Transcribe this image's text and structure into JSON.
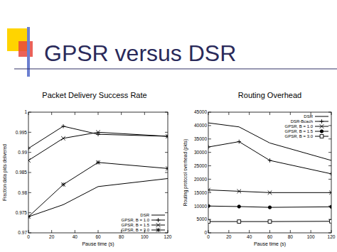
{
  "title": "GPSR versus DSR",
  "chart_data": [
    {
      "type": "line",
      "title": "Packet Delivery Success Rate",
      "x_label": "Pause time (s)",
      "y_label": "Fraction data pkts delivered",
      "x": [
        0,
        30,
        60,
        120
      ],
      "xlim": [
        0,
        120
      ],
      "xticks": [
        0,
        20,
        40,
        60,
        80,
        100,
        120
      ],
      "ylim": [
        0.97,
        1
      ],
      "yticks": [
        0.97,
        0.975,
        0.98,
        0.985,
        0.99,
        0.995,
        1
      ],
      "legend": "bottom-right",
      "series": [
        {
          "name": "DSR",
          "color": "#000000",
          "marker": "none",
          "line_style": "solid",
          "values": [
            0.974,
            0.977,
            0.9815,
            0.9835
          ]
        },
        {
          "name": "GPSR, B = 1.0",
          "color": "#000000",
          "marker": "plus",
          "line_style": "solid",
          "values": [
            0.991,
            0.9965,
            0.9945,
            0.994
          ]
        },
        {
          "name": "GPSR, B = 1.5",
          "color": "#000000",
          "marker": "cross",
          "line_style": "solid",
          "values": [
            0.988,
            0.9935,
            0.995,
            0.994
          ]
        },
        {
          "name": "GPSR, B = 3.0",
          "color": "#000000",
          "marker": "star",
          "line_style": "solid",
          "values": [
            0.974,
            0.982,
            0.9875,
            0.986
          ]
        }
      ]
    },
    {
      "type": "line",
      "title": "Routing Overhead",
      "x_label": "Pause time (s)",
      "y_label": "Routing protocol overhead (pkts)",
      "x": [
        0,
        30,
        60,
        120
      ],
      "xlim": [
        0,
        120
      ],
      "xticks": [
        0,
        20,
        40,
        60,
        80,
        100,
        120
      ],
      "ylim": [
        0,
        45000
      ],
      "yticks": [
        0,
        5000,
        10000,
        15000,
        20000,
        25000,
        30000,
        35000,
        40000,
        45000
      ],
      "legend": "top-right",
      "series": [
        {
          "name": "DSR",
          "color": "#000000",
          "marker": "none",
          "line_style": "solid",
          "values": [
            41000,
            39500,
            33500,
            27000
          ]
        },
        {
          "name": "DSR-Bcach",
          "color": "#000000",
          "marker": "plus",
          "line_style": "solid",
          "values": [
            32000,
            34000,
            27000,
            22000
          ]
        },
        {
          "name": "GPSR, B = 1.0",
          "color": "#000000",
          "marker": "cross",
          "line_style": "solid",
          "values": [
            16000,
            15500,
            15000,
            15000
          ]
        },
        {
          "name": "GPSR, B = 1.5",
          "color": "#000000",
          "marker": "circle",
          "line_style": "solid",
          "values": [
            10000,
            9800,
            9500,
            9700
          ]
        },
        {
          "name": "GPSR, B = 3.0",
          "color": "#000000",
          "marker": "square",
          "line_style": "solid",
          "values": [
            4200,
            4200,
            4200,
            4300
          ]
        }
      ]
    }
  ]
}
